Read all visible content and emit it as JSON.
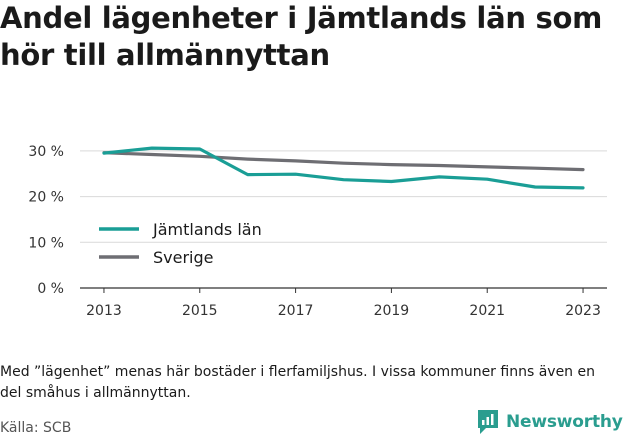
{
  "title_lines": [
    "Andel lägenheter i Jämtlands län som",
    "hör till allmännyttan"
  ],
  "chart_data": {
    "type": "line",
    "x": [
      2013,
      2014,
      2015,
      2016,
      2017,
      2018,
      2019,
      2020,
      2021,
      2022,
      2023
    ],
    "x_ticks": [
      "2013",
      "2015",
      "2017",
      "2019",
      "2021",
      "2023"
    ],
    "y_ticks": [
      "0 %",
      "10 %",
      "20 %",
      "30 %"
    ],
    "y_tick_values": [
      0,
      10,
      20,
      30
    ],
    "ylim": [
      0,
      35
    ],
    "xlim": [
      2012.5,
      2023.5
    ],
    "grid": "horizontal",
    "legend_position": "left",
    "series": [
      {
        "name": "Jämtlands län",
        "color": "#1a9e96",
        "values": [
          29.5,
          30.6,
          30.4,
          24.8,
          24.9,
          23.7,
          23.3,
          24.3,
          23.8,
          22.1,
          21.9
        ]
      },
      {
        "name": "Sverige",
        "color": "#6e6e73",
        "values": [
          29.6,
          29.2,
          28.8,
          28.2,
          27.8,
          27.3,
          27.0,
          26.8,
          26.5,
          26.2,
          25.9
        ]
      }
    ]
  },
  "note": "Med ”lägenhet” menas här bostäder i flerfamiljshus. I vissa kommuner finns även en del småhus i allmännyttan.",
  "source": "Källa: SCB",
  "brand": {
    "name": "Newsworthy",
    "icon": "newsworthy-logo-icon",
    "color": "#2a9d8f"
  }
}
